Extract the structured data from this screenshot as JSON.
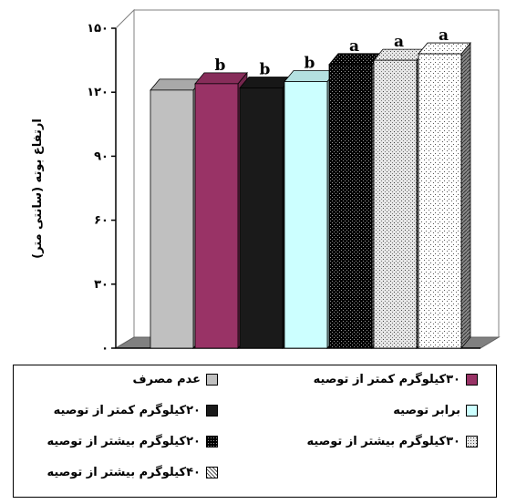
{
  "chart_data": {
    "type": "bar",
    "ylabel": "ارتفاع بوته (سانتی متر)",
    "ylim": [
      0,
      150
    ],
    "yticks": [
      "۰",
      "۳۰",
      "۶۰",
      "۹۰",
      "۱۲۰",
      "۱۵۰"
    ],
    "grid": false,
    "legend_position": "bottom",
    "series": [
      {
        "name": "عدم مصرف",
        "value": 121,
        "label": "",
        "color": "#c0c0c0",
        "pattern": "solid"
      },
      {
        "name": "۳۰کیلوگرم کمتر از توصیه",
        "value": 124,
        "label": "b",
        "color": "#993366",
        "pattern": "solid"
      },
      {
        "name": "۲۰کیلوگرم کمتر از توصیه",
        "value": 122,
        "label": "b",
        "color": "#1a1a1a",
        "pattern": "solid"
      },
      {
        "name": "برابر توصیه",
        "value": 125,
        "label": "b",
        "color": "#ccffff",
        "pattern": "solid"
      },
      {
        "name": "۲۰کیلوگرم بیشتر از توصیه",
        "value": 133,
        "label": "a",
        "color": "#000000",
        "pattern": "dots-dark"
      },
      {
        "name": "۳۰کیلوگرم بیشتر از توصیه",
        "value": 135,
        "label": "a",
        "color": "#d9d9d9",
        "pattern": "dots-light"
      },
      {
        "name": "۴۰کیلوگرم بیشتر از توصیه",
        "value": 138,
        "label": "a",
        "color": "#ffffff",
        "pattern": "dots-sparse"
      }
    ]
  },
  "legend": {
    "items": [
      {
        "series": 0,
        "col": "right",
        "row": 0
      },
      {
        "series": 1,
        "col": "left",
        "row": 0
      },
      {
        "series": 2,
        "col": "right",
        "row": 1
      },
      {
        "series": 3,
        "col": "left",
        "row": 1
      },
      {
        "series": 4,
        "col": "right",
        "row": 2
      },
      {
        "series": 5,
        "col": "left",
        "row": 2
      },
      {
        "series": 6,
        "col": "right",
        "row": 3
      }
    ]
  }
}
